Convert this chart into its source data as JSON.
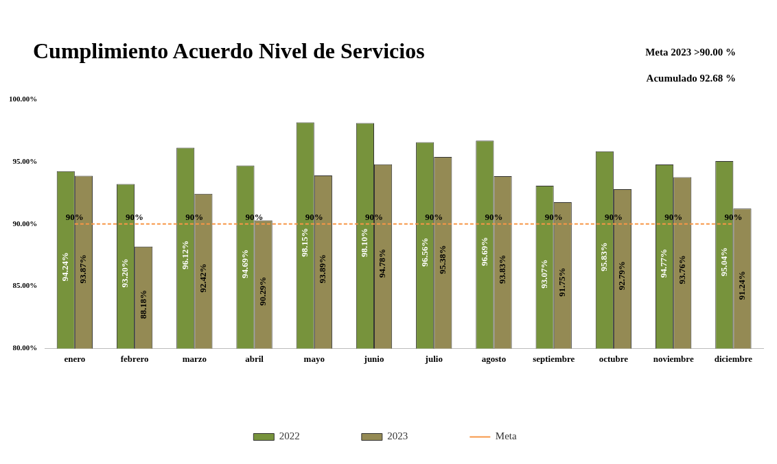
{
  "chart_data": {
    "type": "bar",
    "title": "Cumplimiento Acuerdo Nivel de Servicios",
    "annotations": [
      "Meta 2023  >90.00 %",
      "Acumulado 92.68 %"
    ],
    "categories": [
      "enero",
      "febrero",
      "marzo",
      "abril",
      "mayo",
      "junio",
      "julio",
      "agosto",
      "septiembre",
      "octubre",
      "noviembre",
      "diciembre"
    ],
    "series": [
      {
        "name": "2022",
        "color": "#77933c",
        "values": [
          94.24,
          93.2,
          96.12,
          94.69,
          98.15,
          98.1,
          96.56,
          96.69,
          93.07,
          95.83,
          94.77,
          95.04
        ],
        "value_labels": [
          "94.24%",
          "93.20%",
          "96.12%",
          "94.69%",
          "98.15%",
          "98.10%",
          "96.56%",
          "96.69%",
          "93.07%",
          "95.83%",
          "94.77%",
          "95.04%"
        ]
      },
      {
        "name": "2023",
        "color": "#948a54",
        "values": [
          93.87,
          88.18,
          92.42,
          90.29,
          93.89,
          94.78,
          95.38,
          93.83,
          91.75,
          92.79,
          93.76,
          91.24
        ],
        "value_labels": [
          "93.87%",
          "88.18%",
          "92.42%",
          "90.29%",
          "93.89%",
          "94.78%",
          "95.38%",
          "93.83%",
          "91.75%",
          "92.79%",
          "93.76%",
          "91.24%"
        ]
      },
      {
        "name": "Meta",
        "type": "line",
        "color": "#f79646",
        "line_style": "dashed",
        "values": [
          90,
          90,
          90,
          90,
          90,
          90,
          90,
          90,
          90,
          90,
          90,
          90
        ],
        "value_labels": [
          "90%",
          "90%",
          "90%",
          "90%",
          "90%",
          "90%",
          "90%",
          "90%",
          "90%",
          "90%",
          "90%",
          "90%"
        ]
      }
    ],
    "ylim": [
      80,
      100
    ],
    "yticks": [
      {
        "value": 80,
        "label": "80.00%"
      },
      {
        "value": 85,
        "label": "85.00%"
      },
      {
        "value": 90,
        "label": "90.00%"
      },
      {
        "value": 95,
        "label": "95.00%"
      },
      {
        "value": 100,
        "label": "100.00%"
      }
    ],
    "grid": false,
    "legend": "bottom",
    "marker": "none"
  }
}
